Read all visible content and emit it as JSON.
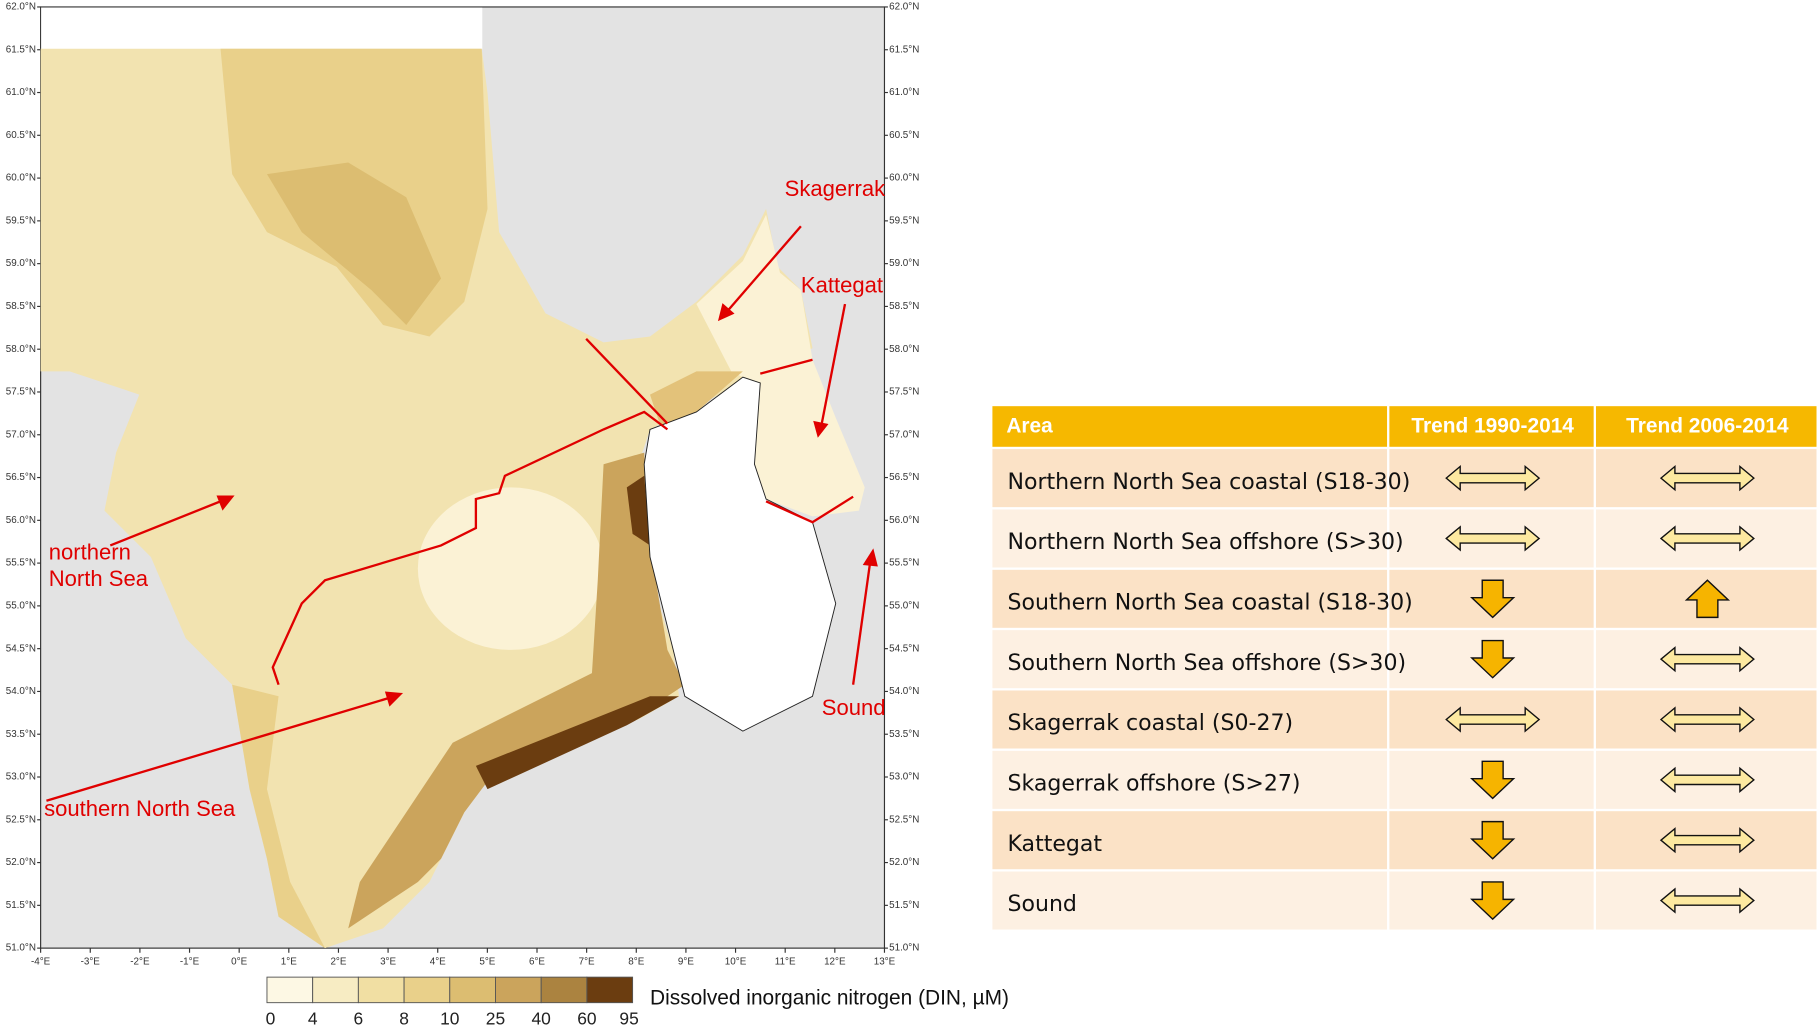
{
  "map": {
    "lat_ticks": [
      {
        "value": 62,
        "label": "62.0°N"
      },
      {
        "value": 61.5,
        "label": "61.5°N"
      },
      {
        "value": 61,
        "label": "61.0°N"
      },
      {
        "value": 60.5,
        "label": "60.5°N"
      },
      {
        "value": 60,
        "label": "60.0°N"
      },
      {
        "value": 59.5,
        "label": "59.5°N"
      },
      {
        "value": 59,
        "label": "59.0°N"
      },
      {
        "value": 58.5,
        "label": "58.5°N"
      },
      {
        "value": 58,
        "label": "58.0°N"
      },
      {
        "value": 57.5,
        "label": "57.5°N"
      },
      {
        "value": 57,
        "label": "57.0°N"
      },
      {
        "value": 56.5,
        "label": "56.5°N"
      },
      {
        "value": 56,
        "label": "56.0°N"
      },
      {
        "value": 55.5,
        "label": "55.5°N"
      },
      {
        "value": 55,
        "label": "55.0°N"
      },
      {
        "value": 54.5,
        "label": "54.5°N"
      },
      {
        "value": 54,
        "label": "54.0°N"
      },
      {
        "value": 53.5,
        "label": "53.5°N"
      },
      {
        "value": 53,
        "label": "53.0°N"
      },
      {
        "value": 52.5,
        "label": "52.5°N"
      },
      {
        "value": 52,
        "label": "52.0°N"
      },
      {
        "value": 51.5,
        "label": "51.5°N"
      },
      {
        "value": 51,
        "label": "51.0°N"
      }
    ],
    "lon_ticks": [
      {
        "value": -4,
        "label": "-4°E"
      },
      {
        "value": -3,
        "label": "-3°E"
      },
      {
        "value": -2,
        "label": "-2°E"
      },
      {
        "value": -1,
        "label": "-1°E"
      },
      {
        "value": 0,
        "label": "0°E"
      },
      {
        "value": 1,
        "label": "1°E"
      },
      {
        "value": 2,
        "label": "2°E"
      },
      {
        "value": 3,
        "label": "3°E"
      },
      {
        "value": 4,
        "label": "4°E"
      },
      {
        "value": 5,
        "label": "5°E"
      },
      {
        "value": 6,
        "label": "6°E"
      },
      {
        "value": 7,
        "label": "7°E"
      },
      {
        "value": 8,
        "label": "8°E"
      },
      {
        "value": 9,
        "label": "9°E"
      },
      {
        "value": 10,
        "label": "10°E"
      },
      {
        "value": 11,
        "label": "11°E"
      },
      {
        "value": 12,
        "label": "12°E"
      },
      {
        "value": 13,
        "label": "13°E"
      }
    ],
    "annotations": {
      "skagerrak": "Skagerrak",
      "kattegat": "Kattegat",
      "sound": "Sound",
      "northern": [
        "northern",
        "North Sea"
      ],
      "southern": "southern North Sea"
    },
    "colorbar": {
      "label": "Dissolved inorganic nitrogen (DIN, µM)",
      "ticks": [
        0,
        4,
        6,
        8,
        10,
        25,
        40,
        60,
        95
      ],
      "colors": [
        "#fdf8e4",
        "#f7ecc3",
        "#f1dfa3",
        "#e9d08a",
        "#dcbd71",
        "#cba45c",
        "#ab8340",
        "#6b3d10"
      ]
    }
  },
  "table": {
    "header": [
      "Area",
      "Trend 1990-2014",
      "Trend 2006-2014"
    ],
    "rows": [
      "Northern North Sea coastal (S18-30)",
      "Northern North Sea offshore (S>30)",
      "Southern North Sea coastal (S18-30)",
      "Southern North Sea offshore (S>30)",
      "Skagerrak coastal (S0-27)",
      "Skagerrak offshore (S>27)",
      "Kattegat",
      "Sound"
    ]
  }
}
